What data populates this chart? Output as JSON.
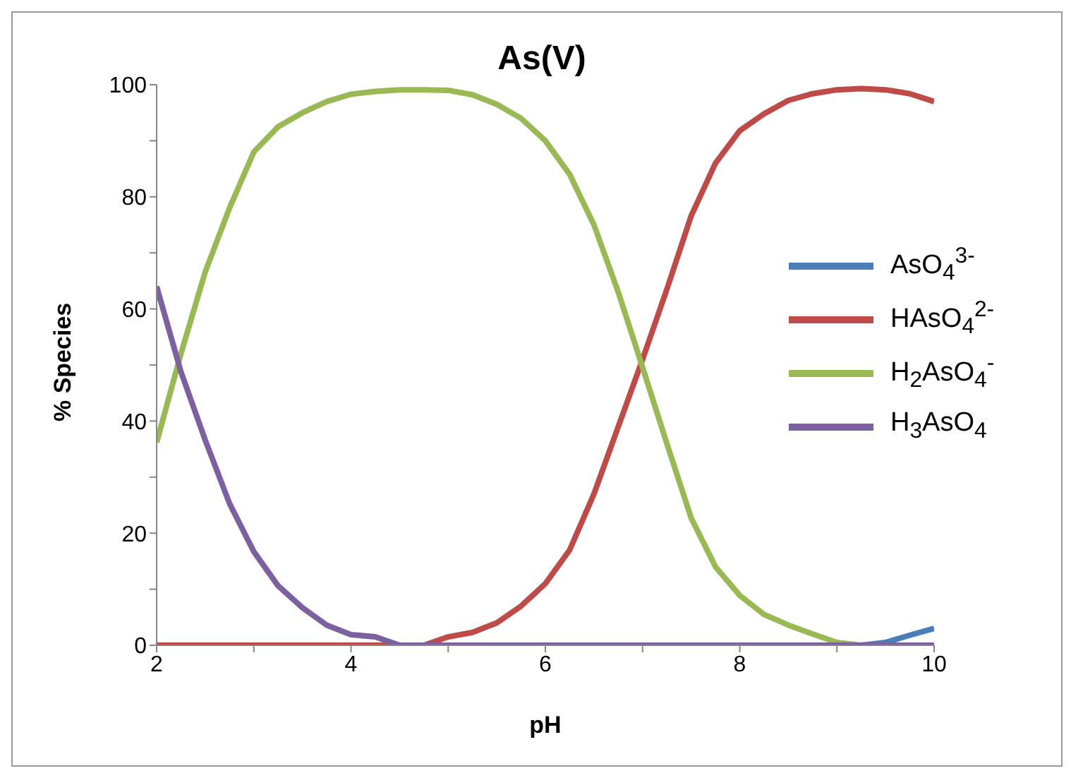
{
  "chart_data": {
    "type": "line",
    "title": "As(V)",
    "xlabel": "pH",
    "ylabel": "% Species",
    "x": [
      2,
      2.25,
      2.5,
      2.75,
      3,
      3.25,
      3.5,
      3.75,
      4,
      4.25,
      4.5,
      4.75,
      5,
      5.25,
      5.5,
      5.75,
      6,
      6.25,
      6.5,
      6.75,
      7,
      7.25,
      7.5,
      7.75,
      8,
      8.25,
      8.5,
      8.75,
      9,
      9.25,
      9.5,
      9.75,
      10
    ],
    "series": [
      {
        "name": "AsO$_{4}$$^{3-}$",
        "color": "#4a7ebb",
        "values": [
          null,
          null,
          null,
          null,
          null,
          null,
          null,
          null,
          null,
          null,
          null,
          null,
          null,
          null,
          null,
          null,
          null,
          null,
          null,
          null,
          null,
          null,
          null,
          null,
          null,
          null,
          null,
          null,
          null,
          0,
          0.5,
          1.8,
          3
        ]
      },
      {
        "name": "HAsO$_{4}$$^{2-}$",
        "color": "#be4b48",
        "values": [
          0,
          0,
          0,
          0,
          0,
          0,
          0,
          0,
          0,
          0,
          0,
          0,
          1.5,
          2.3,
          4,
          7,
          11,
          17,
          27,
          39,
          51,
          63.5,
          76.6,
          86,
          91.8,
          94.8,
          97.2,
          98.4,
          99.1,
          99.3,
          99.1,
          98.4,
          97
        ]
      },
      {
        "name": "H$_{2}$AsO$_{4}$$^{-}$",
        "color": "#98b954",
        "values": [
          36.2,
          52,
          66.6,
          78,
          88,
          92.5,
          95,
          97,
          98.3,
          98.8,
          99.1,
          99.1,
          99,
          98.2,
          96.5,
          94,
          90,
          84,
          75,
          63,
          49.6,
          36,
          22.7,
          14,
          8.9,
          5.5,
          3.6,
          2,
          0.5,
          0,
          null,
          null,
          null
        ]
      },
      {
        "name": "H$_{3}$AsO$_{4}$",
        "color": "#7d60a0",
        "values": [
          64,
          48.8,
          36.6,
          25.3,
          16.7,
          10.6,
          6.7,
          3.6,
          1.9,
          1.5,
          0,
          0,
          0,
          0,
          0,
          0,
          0,
          0,
          0,
          0,
          0,
          0,
          0,
          0,
          0,
          0,
          0,
          0,
          0,
          0,
          0,
          0,
          0
        ]
      }
    ],
    "xlim": [
      2,
      10
    ],
    "xticks": [
      2,
      {
        "value": 3,
        "label": null
      },
      4,
      {
        "value": 5,
        "label": null
      },
      6,
      {
        "value": 7,
        "label": null
      },
      8,
      {
        "value": 9,
        "label": null
      },
      10
    ],
    "ylim": [
      0,
      100
    ],
    "yticks": [
      0,
      {
        "value": 10,
        "label": null
      },
      20,
      {
        "value": 30,
        "label": null
      },
      40,
      {
        "value": 50,
        "label": null
      },
      60,
      {
        "value": 70,
        "label": null
      },
      80,
      {
        "value": 90,
        "label": null
      },
      100
    ],
    "grid": false,
    "legend": "right",
    "marker": "none",
    "line_style": "solid"
  }
}
